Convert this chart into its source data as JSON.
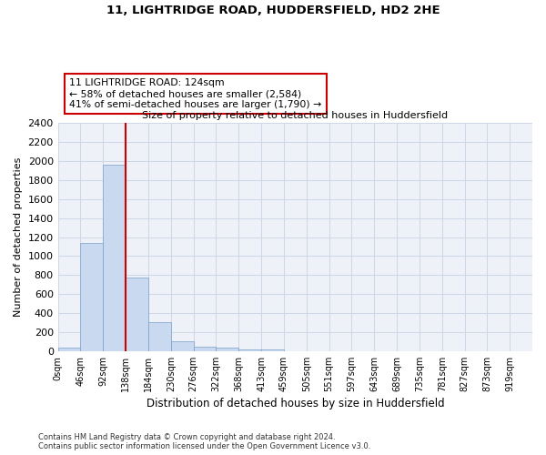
{
  "title1": "11, LIGHTRIDGE ROAD, HUDDERSFIELD, HD2 2HE",
  "title2": "Size of property relative to detached houses in Huddersfield",
  "xlabel": "Distribution of detached houses by size in Huddersfield",
  "ylabel": "Number of detached properties",
  "bin_labels": [
    "0sqm",
    "46sqm",
    "92sqm",
    "138sqm",
    "184sqm",
    "230sqm",
    "276sqm",
    "322sqm",
    "368sqm",
    "413sqm",
    "459sqm",
    "505sqm",
    "551sqm",
    "597sqm",
    "643sqm",
    "689sqm",
    "735sqm",
    "781sqm",
    "827sqm",
    "873sqm",
    "919sqm"
  ],
  "bar_values": [
    35,
    1135,
    1960,
    775,
    300,
    100,
    48,
    38,
    22,
    18,
    0,
    0,
    0,
    0,
    0,
    0,
    0,
    0,
    0,
    0
  ],
  "bar_color": "#c9d9f0",
  "bar_edge_color": "#7a9fc7",
  "annotation_text": "11 LIGHTRIDGE ROAD: 124sqm\n← 58% of detached houses are smaller (2,584)\n41% of semi-detached houses are larger (1,790) →",
  "annotation_box_color": "#ffffff",
  "annotation_box_edge": "#cc0000",
  "red_line_color": "#cc0000",
  "ylim": [
    0,
    2400
  ],
  "yticks": [
    0,
    200,
    400,
    600,
    800,
    1000,
    1200,
    1400,
    1600,
    1800,
    2000,
    2200,
    2400
  ],
  "footnote1": "Contains HM Land Registry data © Crown copyright and database right 2024.",
  "footnote2": "Contains public sector information licensed under the Open Government Licence v3.0.",
  "grid_color": "#d0d8e8",
  "bg_color": "#eef2f8"
}
